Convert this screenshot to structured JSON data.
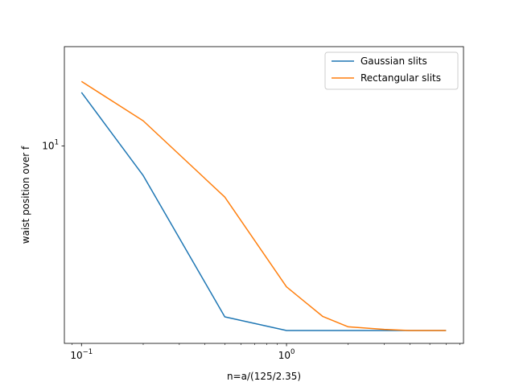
{
  "chart_data": {
    "type": "line",
    "xlabel": "n=a/(125/2.35)",
    "ylabel": "waist position over f",
    "xscale": "log",
    "yscale": "log",
    "xlim": [
      0.0825,
      7.3
    ],
    "ylim": [
      2.25,
      21.2
    ],
    "grid": false,
    "legend_position": "top-right",
    "x_major_ticks": [
      {
        "value": 0.1,
        "base": "10",
        "exp": "−1"
      },
      {
        "value": 1,
        "base": "10",
        "exp": "0"
      }
    ],
    "y_major_ticks": [
      {
        "value": 10,
        "base": "10",
        "exp": "1"
      }
    ],
    "x_minor_ticks": [
      0.09,
      0.2,
      0.3,
      0.4,
      0.5,
      0.6,
      0.7,
      0.8,
      0.9,
      2,
      3,
      4,
      5,
      6,
      7
    ],
    "series": [
      {
        "name": "Gaussian slits",
        "color": "#1f77b4",
        "x": [
          0.1,
          0.2,
          0.5,
          1.0,
          1.5,
          2.0,
          3.0,
          4.0,
          5.0,
          6.0
        ],
        "y": [
          15.0,
          8.0,
          2.75,
          2.48,
          2.48,
          2.48,
          2.48,
          2.48,
          2.48,
          2.48
        ]
      },
      {
        "name": "Rectangular slits",
        "color": "#ff7f0e",
        "x": [
          0.1,
          0.2,
          0.5,
          1.0,
          1.5,
          2.0,
          3.0,
          4.0,
          5.0,
          6.0
        ],
        "y": [
          16.3,
          12.1,
          6.8,
          3.45,
          2.76,
          2.55,
          2.5,
          2.48,
          2.48,
          2.48
        ]
      }
    ]
  }
}
